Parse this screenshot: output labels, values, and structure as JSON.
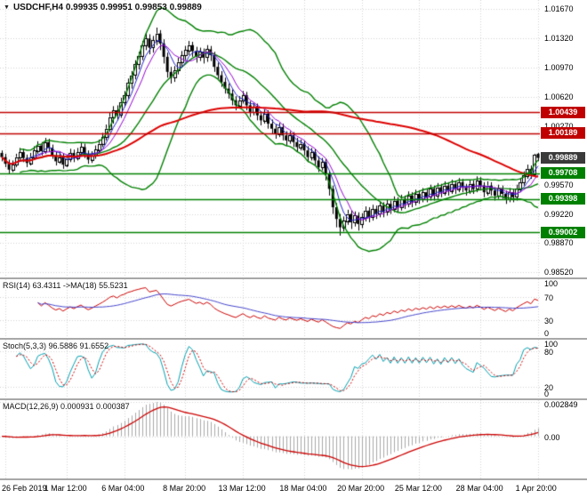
{
  "header": {
    "title": "USDCHF,H4 0.99935 0.99951 0.99853 0.99889",
    "symbol": "USDCHF",
    "timeframe": "H4",
    "dropdown_icon": "▼",
    "ohlc": {
      "open": "0.99935",
      "high": "0.99951",
      "low": "0.99853",
      "close": "0.99889"
    }
  },
  "colors": {
    "background": "#ffffff",
    "grid": "#d4d4d4",
    "candle": "#000000",
    "bollinger": "#008000",
    "ma_slow": "#dd0000",
    "ma_fast": "#2222cc",
    "ma_mid": "#9400d3",
    "resistance": "#c00000",
    "support": "#008000",
    "current_price_box": "#3a3a3a",
    "rsi_line": "#cc0000",
    "rsi_ma": "#4444cc",
    "stoch_k": "#00a0b0",
    "stoch_d": "#cc0000",
    "macd_hist": "#a9a9a9",
    "macd_signal": "#cc0000"
  },
  "price_axis": {
    "ticks": [
      "1.01670",
      "1.01320",
      "1.00970",
      "1.00620",
      "1.00270",
      "0.99920",
      "0.99570",
      "0.99220",
      "0.98870",
      "0.98520"
    ],
    "ylim": [
      0.9846,
      1.0178
    ],
    "level_labels": [
      {
        "text": "1.00439",
        "value": 1.00439,
        "color": "#c00000",
        "type": "resistance"
      },
      {
        "text": "1.00189",
        "value": 1.00189,
        "color": "#c00000",
        "type": "resistance"
      },
      {
        "text": "0.99889",
        "value": 0.99889,
        "color": "#3a3a3a",
        "type": "current-price"
      },
      {
        "text": "0.99708",
        "value": 0.99708,
        "color": "#008000",
        "type": "support"
      },
      {
        "text": "0.99398",
        "value": 0.99398,
        "color": "#008000",
        "type": "support"
      },
      {
        "text": "0.99002",
        "value": 0.99002,
        "color": "#008000",
        "type": "support"
      }
    ]
  },
  "time_axis": {
    "labels": [
      "26 Feb 2019",
      "1 Mar 12:00",
      "6 Mar 04:00",
      "8 Mar 20:00",
      "13 Mar 12:00",
      "18 Mar 04:00",
      "20 Mar 20:00",
      "25 Mar 12:00",
      "28 Mar 04:00",
      "1 Apr 20:00"
    ],
    "indices": [
      1,
      18,
      34,
      51,
      67,
      84,
      100,
      116,
      133,
      149
    ]
  },
  "indicators": {
    "rsi": {
      "label": "RSI(14) 63.4311 ->MA(18) 55.5231",
      "period": 14,
      "ma_period": 18,
      "value": 63.4311,
      "ma_value": 55.5231,
      "ticks": [
        "100",
        "70",
        "30",
        "0"
      ],
      "levels": [
        70,
        30
      ],
      "ylim": [
        0,
        100
      ]
    },
    "stoch": {
      "label": "Stoch(5,3,3) 96.5886 91.6552",
      "k_value": 96.5886,
      "d_value": 91.6552,
      "ticks": [
        "100",
        "80",
        "20",
        "0"
      ],
      "levels": [
        80,
        20
      ],
      "ylim": [
        0,
        100
      ]
    },
    "macd": {
      "label": "MACD(12,26,9) 0.000931 0.000387",
      "macd_value": 0.000931,
      "signal_value": 0.000387,
      "ticks": [
        "0.002849",
        "0.00"
      ],
      "tick_values": [
        0.002849,
        0
      ],
      "scale_to": 0.002849,
      "ylim": [
        -0.0035,
        0.003
      ]
    }
  },
  "chart_data": [
    {
      "type": "candlestick",
      "title": "USDCHF,H4",
      "ylim": [
        0.9846,
        1.0178
      ],
      "overlays": [
        {
          "name": "bollinger-bands",
          "period": 20,
          "deviation": 2,
          "color": "#008000"
        },
        {
          "name": "ma-fast",
          "period": 5,
          "color": "#2222cc"
        },
        {
          "name": "ma-mid",
          "period": 8,
          "color": "#9400d3"
        },
        {
          "name": "ma-slow",
          "period": 85,
          "color": "#dd0000"
        }
      ],
      "h_levels": [
        {
          "value": 1.00439,
          "color": "#c00000"
        },
        {
          "value": 1.00189,
          "color": "#c00000"
        },
        {
          "value": 0.99708,
          "color": "#008000"
        },
        {
          "value": 0.99398,
          "color": "#008000"
        },
        {
          "value": 0.99002,
          "color": "#008000"
        }
      ],
      "ohlc": [
        [
          0.9995,
          0.9998,
          0.9985,
          0.999
        ],
        [
          0.999,
          0.9994,
          0.9978,
          0.9982
        ],
        [
          0.9982,
          0.9987,
          0.997,
          0.9975
        ],
        [
          0.9975,
          0.9986,
          0.9972,
          0.9981
        ],
        [
          0.9981,
          0.9994,
          0.9978,
          0.999
        ],
        [
          0.999,
          1.0001,
          0.9986,
          0.9996
        ],
        [
          0.9996,
          1.0,
          0.9984,
          0.9989
        ],
        [
          0.9989,
          0.9993,
          0.9978,
          0.9983
        ],
        [
          0.9983,
          0.9995,
          0.998,
          0.999
        ],
        [
          0.999,
          1.0003,
          0.9987,
          0.9998
        ],
        [
          0.9998,
          1.0009,
          0.9994,
          1.0004
        ],
        [
          1.0004,
          1.0008,
          0.9992,
          0.9997
        ],
        [
          0.9997,
          1.0013,
          0.9994,
          1.0008
        ],
        [
          1.0008,
          1.0012,
          0.9996,
          1.0001
        ],
        [
          1.0001,
          1.0005,
          0.9988,
          0.9992
        ],
        [
          0.9992,
          0.9996,
          0.998,
          0.9985
        ],
        [
          0.9985,
          0.9996,
          0.9982,
          0.999
        ],
        [
          0.999,
          0.9994,
          0.9976,
          0.9981
        ],
        [
          0.9981,
          0.9993,
          0.9978,
          0.9988
        ],
        [
          0.9988,
          1.0,
          0.9984,
          0.9995
        ],
        [
          0.9995,
          0.9999,
          0.9984,
          0.9989
        ],
        [
          0.9989,
          1.0001,
          0.9986,
          0.9996
        ],
        [
          0.9996,
          1.0007,
          0.9992,
          1.0002
        ],
        [
          1.0002,
          1.0006,
          0.9989,
          0.9994
        ],
        [
          0.9994,
          0.9998,
          0.9982,
          0.9987
        ],
        [
          0.9987,
          0.9997,
          0.9983,
          0.9992
        ],
        [
          0.9992,
          1.0004,
          0.9988,
          0.9999
        ],
        [
          0.9999,
          1.0011,
          0.9995,
          1.0006
        ],
        [
          1.0006,
          1.0019,
          1.0002,
          1.0014
        ],
        [
          1.0014,
          1.0029,
          1.001,
          1.0024
        ],
        [
          1.0024,
          1.0043,
          1.002,
          1.0038
        ],
        [
          1.0038,
          1.0051,
          1.003,
          1.0046
        ],
        [
          1.0046,
          1.0052,
          1.0034,
          1.0041
        ],
        [
          1.0041,
          1.0061,
          1.0037,
          1.0056
        ],
        [
          1.0056,
          1.0069,
          1.005,
          1.0064
        ],
        [
          1.0064,
          1.0084,
          1.006,
          1.0079
        ],
        [
          1.0079,
          1.0093,
          1.0072,
          1.0088
        ],
        [
          1.0088,
          1.0106,
          1.0083,
          1.0101
        ],
        [
          1.0101,
          1.0116,
          1.0095,
          1.0111
        ],
        [
          1.0111,
          1.0129,
          1.0106,
          1.0124
        ],
        [
          1.0124,
          1.0139,
          1.0118,
          1.0132
        ],
        [
          1.0132,
          1.0137,
          1.0113,
          1.0121
        ],
        [
          1.0121,
          1.0135,
          1.0115,
          1.013
        ],
        [
          1.013,
          1.0145,
          1.0124,
          1.0138
        ],
        [
          1.0138,
          1.0142,
          1.0118,
          1.0126
        ],
        [
          1.0126,
          1.0131,
          1.0102,
          1.011
        ],
        [
          1.011,
          1.0115,
          1.0085,
          1.0092
        ],
        [
          1.0092,
          1.0098,
          1.0078,
          1.0085
        ],
        [
          1.0085,
          1.0099,
          1.008,
          1.0094
        ],
        [
          1.0094,
          1.0109,
          1.0089,
          1.0104
        ],
        [
          1.0104,
          1.0117,
          1.0098,
          1.0112
        ],
        [
          1.0112,
          1.0123,
          1.0106,
          1.0118
        ],
        [
          1.0118,
          1.0129,
          1.0112,
          1.0124
        ],
        [
          1.0124,
          1.0128,
          1.011,
          1.0117
        ],
        [
          1.0117,
          1.0122,
          1.0103,
          1.011
        ],
        [
          1.011,
          1.0121,
          1.0105,
          1.0116
        ],
        [
          1.0116,
          1.012,
          1.0102,
          1.0109
        ],
        [
          1.0109,
          1.0124,
          1.0104,
          1.0119
        ],
        [
          1.0119,
          1.0123,
          1.0105,
          1.0112
        ],
        [
          1.0112,
          1.0116,
          1.0092,
          1.0098
        ],
        [
          1.0098,
          1.0103,
          1.0082,
          1.0088
        ],
        [
          1.0088,
          1.0093,
          1.0074,
          1.008
        ],
        [
          1.008,
          1.0085,
          1.0066,
          1.0072
        ],
        [
          1.0072,
          1.0078,
          1.006,
          1.0066
        ],
        [
          1.0066,
          1.0071,
          1.0052,
          1.0058
        ],
        [
          1.0058,
          1.0063,
          1.0046,
          1.0052
        ],
        [
          1.0052,
          1.0063,
          1.0048,
          1.0058
        ],
        [
          1.0058,
          1.0069,
          1.0054,
          1.0064
        ],
        [
          1.0064,
          1.0068,
          1.0046,
          1.0052
        ],
        [
          1.0052,
          1.0057,
          1.0038,
          1.0044
        ],
        [
          1.0044,
          1.0055,
          1.004,
          1.005
        ],
        [
          1.005,
          1.0054,
          1.0034,
          1.004
        ],
        [
          1.004,
          1.0045,
          1.0028,
          1.0034
        ],
        [
          1.0034,
          1.0047,
          1.003,
          1.0042
        ],
        [
          1.0042,
          1.0046,
          1.0024,
          1.003
        ],
        [
          1.003,
          1.0035,
          1.0018,
          1.0024
        ],
        [
          1.0024,
          1.0029,
          1.0012,
          1.0018
        ],
        [
          1.0018,
          1.0031,
          1.0014,
          1.0026
        ],
        [
          1.0026,
          1.003,
          1.001,
          1.0016
        ],
        [
          1.0016,
          1.0021,
          1.0004,
          1.001
        ],
        [
          1.001,
          1.0021,
          1.0006,
          1.0016
        ],
        [
          1.0016,
          1.002,
          1.0002,
          1.0008
        ],
        [
          1.0008,
          1.0013,
          0.9996,
          1.0002
        ],
        [
          1.0002,
          1.0011,
          0.9998,
          1.0006
        ],
        [
          1.0006,
          1.001,
          0.9992,
          0.9998
        ],
        [
          0.9998,
          1.0003,
          0.9984,
          0.999
        ],
        [
          0.999,
          1.0001,
          0.9986,
          0.9996
        ],
        [
          0.9996,
          1.0,
          0.998,
          0.9986
        ],
        [
          0.9986,
          0.9991,
          0.9972,
          0.9978
        ],
        [
          0.9978,
          0.9989,
          0.9974,
          0.9984
        ],
        [
          0.9984,
          0.9988,
          0.9962,
          0.997
        ],
        [
          0.997,
          0.9974,
          0.9944,
          0.9952
        ],
        [
          0.9952,
          0.9956,
          0.9922,
          0.993
        ],
        [
          0.993,
          0.9935,
          0.9906,
          0.9916
        ],
        [
          0.9916,
          0.9922,
          0.9896,
          0.9906
        ],
        [
          0.9906,
          0.9919,
          0.9901,
          0.9914
        ],
        [
          0.9914,
          0.9927,
          0.9909,
          0.9922
        ],
        [
          0.9922,
          0.9926,
          0.9904,
          0.9912
        ],
        [
          0.9912,
          0.9925,
          0.9907,
          0.992
        ],
        [
          0.992,
          0.9924,
          0.9902,
          0.991
        ],
        [
          0.991,
          0.9923,
          0.9905,
          0.9918
        ],
        [
          0.9918,
          0.9931,
          0.9913,
          0.9926
        ],
        [
          0.9926,
          0.993,
          0.9912,
          0.9918
        ],
        [
          0.9918,
          0.9933,
          0.9914,
          0.9928
        ],
        [
          0.9928,
          0.9932,
          0.9916,
          0.9922
        ],
        [
          0.9922,
          0.9937,
          0.9918,
          0.9932
        ],
        [
          0.9932,
          0.9936,
          0.9918,
          0.9924
        ],
        [
          0.9924,
          0.9939,
          0.992,
          0.9934
        ],
        [
          0.9934,
          0.9938,
          0.9922,
          0.9928
        ],
        [
          0.9928,
          0.9943,
          0.9924,
          0.9938
        ],
        [
          0.9938,
          0.9942,
          0.9924,
          0.993
        ],
        [
          0.993,
          0.9945,
          0.9926,
          0.994
        ],
        [
          0.994,
          0.9944,
          0.9928,
          0.9934
        ],
        [
          0.9934,
          0.9949,
          0.993,
          0.9944
        ],
        [
          0.9944,
          0.9948,
          0.993,
          0.9936
        ],
        [
          0.9936,
          0.9951,
          0.9932,
          0.9946
        ],
        [
          0.9946,
          0.995,
          0.9934,
          0.994
        ],
        [
          0.994,
          0.9953,
          0.9936,
          0.9948
        ],
        [
          0.9948,
          0.9952,
          0.9936,
          0.9942
        ],
        [
          0.9942,
          0.9957,
          0.9938,
          0.9952
        ],
        [
          0.9952,
          0.9956,
          0.9938,
          0.9944
        ],
        [
          0.9944,
          0.9959,
          0.994,
          0.9954
        ],
        [
          0.9954,
          0.9958,
          0.9942,
          0.9948
        ],
        [
          0.9948,
          0.9961,
          0.9944,
          0.9956
        ],
        [
          0.9956,
          0.996,
          0.9944,
          0.995
        ],
        [
          0.995,
          0.9963,
          0.9946,
          0.9958
        ],
        [
          0.9958,
          0.9962,
          0.9946,
          0.9952
        ],
        [
          0.9952,
          0.9965,
          0.9948,
          0.996
        ],
        [
          0.996,
          0.9964,
          0.9948,
          0.9954
        ],
        [
          0.9954,
          0.9958,
          0.9944,
          0.995
        ],
        [
          0.995,
          0.9963,
          0.9946,
          0.9958
        ],
        [
          0.9958,
          0.9962,
          0.9946,
          0.9952
        ],
        [
          0.9952,
          0.9967,
          0.9948,
          0.9962
        ],
        [
          0.9962,
          0.9966,
          0.995,
          0.9956
        ],
        [
          0.9956,
          0.996,
          0.9942,
          0.9948
        ],
        [
          0.9948,
          0.9961,
          0.9944,
          0.9956
        ],
        [
          0.9956,
          0.996,
          0.9944,
          0.995
        ],
        [
          0.995,
          0.9954,
          0.9938,
          0.9944
        ],
        [
          0.9944,
          0.9957,
          0.994,
          0.9952
        ],
        [
          0.9952,
          0.9956,
          0.994,
          0.9946
        ],
        [
          0.9946,
          0.995,
          0.9934,
          0.994
        ],
        [
          0.994,
          0.9953,
          0.9936,
          0.9948
        ],
        [
          0.9948,
          0.9952,
          0.9936,
          0.9942
        ],
        [
          0.9942,
          0.9957,
          0.9938,
          0.9952
        ],
        [
          0.9952,
          0.9965,
          0.9948,
          0.996
        ],
        [
          0.996,
          0.9973,
          0.9956,
          0.9968
        ],
        [
          0.9968,
          0.9981,
          0.9964,
          0.9976
        ],
        [
          0.9976,
          0.998,
          0.9964,
          0.997
        ],
        [
          0.997,
          0.9994,
          0.9966,
          0.9993
        ],
        [
          0.9994,
          0.9995,
          0.9985,
          0.9989
        ]
      ]
    },
    {
      "type": "line",
      "name": "RSI",
      "params": "RSI(14) ->MA(18)",
      "period": 14,
      "ma_period": 18,
      "last_value": 63.4311,
      "ma_last_value": 55.5231,
      "ylim": [
        0,
        100
      ],
      "levels": [
        70,
        30
      ],
      "derived_from": "ohlc closes of panel 0"
    },
    {
      "type": "line",
      "name": "Stochastic",
      "params": "Stoch(5,3,3)",
      "k_last": 96.5886,
      "d_last": 91.6552,
      "ylim": [
        0,
        100
      ],
      "levels": [
        80,
        20
      ],
      "derived_from": "ohlc of panel 0"
    },
    {
      "type": "macd",
      "name": "MACD",
      "params": "MACD(12,26,9)",
      "macd_last": 0.000931,
      "signal_last": 0.000387,
      "axis_max_label": 0.002849,
      "ylim": [
        -0.0035,
        0.003
      ],
      "derived_from": "ohlc closes of panel 0"
    }
  ]
}
